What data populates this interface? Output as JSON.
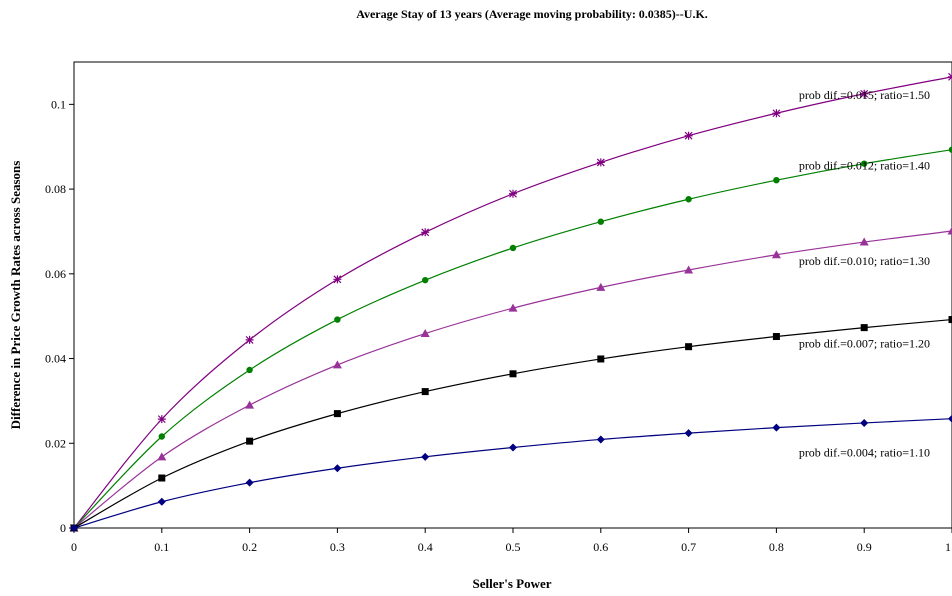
{
  "chart_data": {
    "type": "line",
    "title": "Average Stay of 13 years (Average moving probability: 0.0385)--U.K.",
    "xlabel": "Seller's Power",
    "ylabel": "Difference in Price Growth Rates across Seasons",
    "xlim": [
      0,
      1
    ],
    "ylim": [
      0,
      0.11
    ],
    "x_ticks": [
      "0",
      "0.1",
      "0.2",
      "0.3",
      "0.4",
      "0.5",
      "0.6",
      "0.7",
      "0.8",
      "0.9",
      "1"
    ],
    "y_ticks": [
      "0",
      "0.02",
      "0.04",
      "0.06",
      "0.08",
      "0.1"
    ],
    "x_tick_values": [
      0,
      0.1,
      0.2,
      0.3,
      0.4,
      0.5,
      0.6,
      0.7,
      0.8,
      0.9,
      1
    ],
    "y_tick_values": [
      0,
      0.02,
      0.04,
      0.06,
      0.08,
      0.1
    ],
    "grid": false,
    "legend": "none",
    "x": [
      0,
      0.1,
      0.2,
      0.3,
      0.4,
      0.5,
      0.6,
      0.7,
      0.8,
      0.9,
      1
    ],
    "series": [
      {
        "label": "prob dif.=0.015; ratio=1.50",
        "color": "#800080",
        "marker": "asterisk",
        "values": [
          0,
          0.0257,
          0.0444,
          0.0587,
          0.0698,
          0.0789,
          0.0863,
          0.0926,
          0.0979,
          0.1025,
          0.1065
        ]
      },
      {
        "label": "prob dif.=0.012; ratio=1.40",
        "color": "#008000",
        "marker": "circle",
        "values": [
          0,
          0.0216,
          0.0373,
          0.0492,
          0.0585,
          0.0661,
          0.0723,
          0.0776,
          0.0821,
          0.086,
          0.0893
        ]
      },
      {
        "label": "prob dif.=0.010; ratio=1.30",
        "color": "#993399",
        "marker": "triangle",
        "values": [
          0,
          0.0168,
          0.029,
          0.0385,
          0.0459,
          0.0519,
          0.0568,
          0.0609,
          0.0645,
          0.0675,
          0.0701
        ]
      },
      {
        "label": "prob dif.=0.007; ratio=1.20",
        "color": "#000000",
        "marker": "square",
        "values": [
          0,
          0.0118,
          0.0205,
          0.027,
          0.0322,
          0.0364,
          0.0399,
          0.0428,
          0.0452,
          0.0473,
          0.0492
        ]
      },
      {
        "label": "prob dif.=0.004; ratio=1.10",
        "color": "#000080",
        "marker": "diamond",
        "values": [
          0,
          0.0062,
          0.0107,
          0.0141,
          0.0168,
          0.019,
          0.0209,
          0.0224,
          0.0237,
          0.0248,
          0.0258
        ]
      }
    ]
  }
}
